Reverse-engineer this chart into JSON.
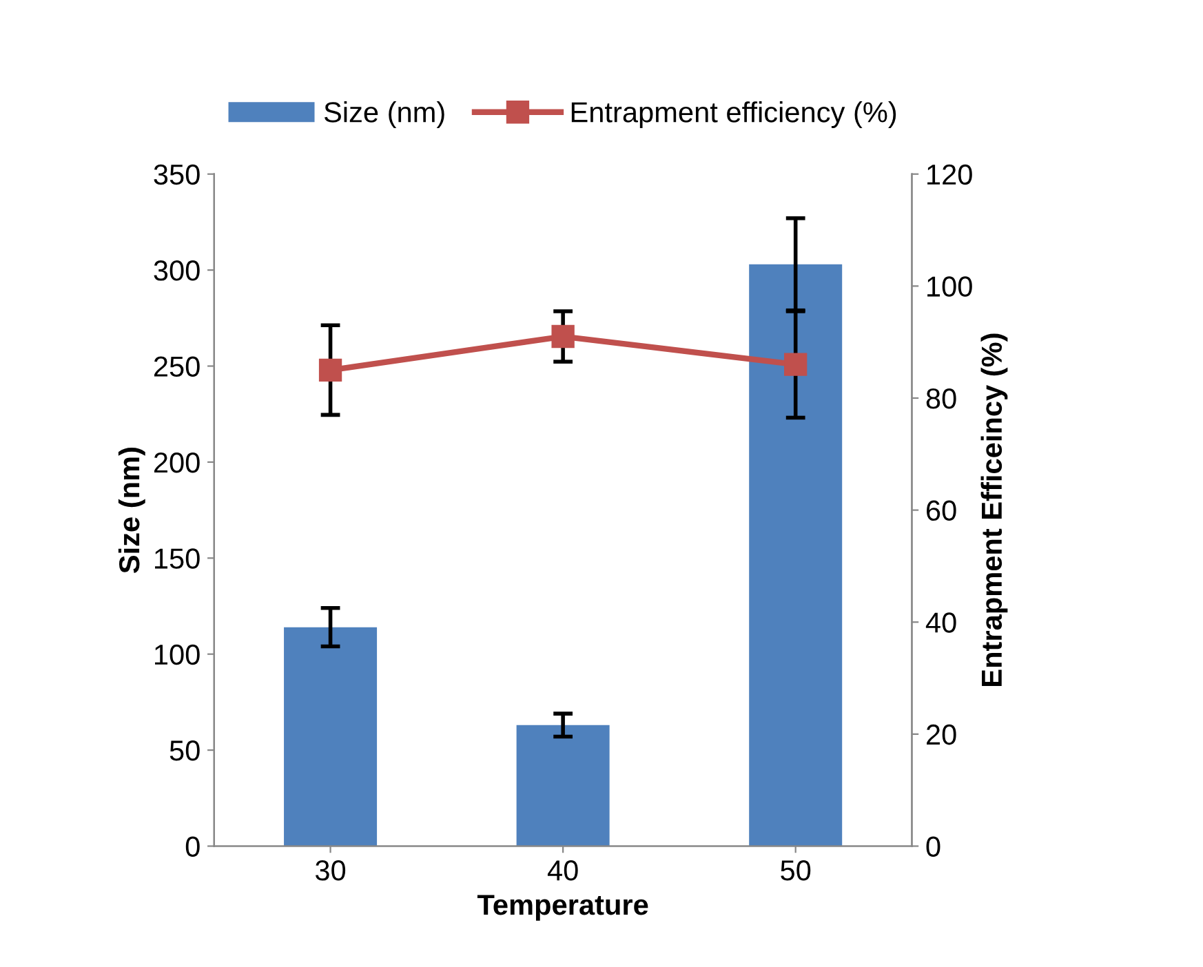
{
  "chart_data": {
    "type": "bar",
    "xlabel": "Temperature",
    "ylabel": "Size (nm)",
    "y2label": "Entrapment Efficeincy (%)",
    "categories": [
      "30",
      "40",
      "50"
    ],
    "series": [
      {
        "name": "Size (nm)",
        "color": "#4f81bd",
        "values": [
          114,
          63,
          303
        ],
        "errors": [
          10,
          6,
          24
        ]
      },
      {
        "name": "Entrapment efficiency (%)",
        "type": "line",
        "axis": "y2",
        "color": "#c0504d",
        "values": [
          85,
          91,
          86
        ],
        "errors": [
          8,
          4.5,
          9.5
        ],
        "marker": "square"
      }
    ],
    "ylim": [
      0,
      350
    ],
    "yticks": [
      0,
      50,
      100,
      150,
      200,
      250,
      300,
      350
    ],
    "y2lim": [
      0,
      120
    ],
    "y2ticks": [
      0,
      20,
      40,
      60,
      80,
      100,
      120
    ],
    "grid": false,
    "legend": "top"
  }
}
